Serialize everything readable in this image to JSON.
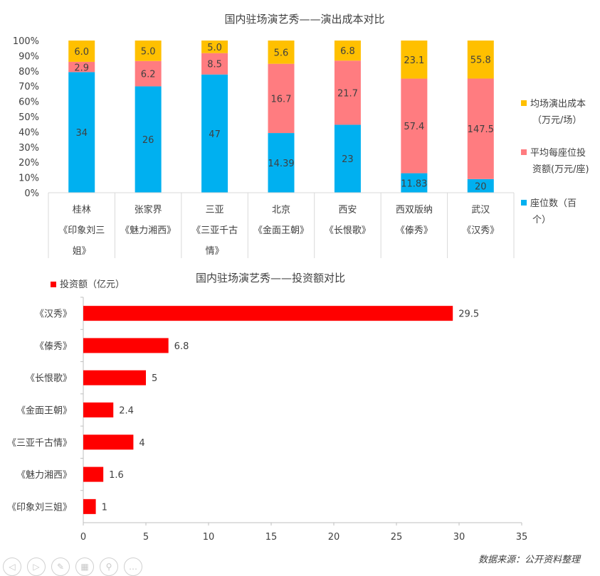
{
  "chart_data": [
    {
      "type": "bar",
      "stacked": "percent",
      "title": "国内驻场演艺秀——演出成本对比",
      "categories": [
        [
          "桂林",
          "《印象刘三",
          "姐》"
        ],
        [
          "张家界",
          "《魅力湘西》"
        ],
        [
          "三亚",
          "《三亚千古",
          "情》"
        ],
        [
          "北京",
          "《金面王朝》"
        ],
        [
          "西安",
          "《长恨歌》"
        ],
        [
          "西双版纳",
          "《傣秀》"
        ],
        [
          "武汉",
          "《汉秀》"
        ]
      ],
      "yticks": [
        "0%",
        "10%",
        "20%",
        "30%",
        "40%",
        "50%",
        "60%",
        "70%",
        "80%",
        "90%",
        "100%"
      ],
      "series": [
        {
          "name": [
            "座位数（百",
            "个）"
          ],
          "color": "#00b0f0",
          "values": [
            34,
            26,
            47,
            14.39,
            23,
            11.83,
            20
          ],
          "labels": [
            "34",
            "26",
            "47",
            "14.39",
            "23",
            "11.83",
            "20"
          ]
        },
        {
          "name": [
            "平均每座位投",
            "资额(万元/座)"
          ],
          "color": "#ff7c80",
          "values": [
            2.9,
            6.2,
            8.5,
            16.7,
            21.7,
            57.4,
            147.5
          ],
          "labels": [
            "2.9",
            "6.2",
            "8.5",
            "16.7",
            "21.7",
            "57.4",
            "147.5"
          ]
        },
        {
          "name": [
            "均场演出成本",
            "（万元/场）"
          ],
          "color": "#ffc000",
          "values": [
            6.0,
            5.0,
            5.0,
            5.6,
            6.8,
            23.1,
            55.8
          ],
          "labels": [
            "6.0",
            "5.0",
            "5.0",
            "5.6",
            "6.8",
            "23.1",
            "55.8"
          ]
        }
      ],
      "ylim": [
        0,
        100
      ],
      "grid": false,
      "legend": "right"
    },
    {
      "type": "bar",
      "orientation": "horizontal",
      "title": "国内驻场演艺秀——投资额对比",
      "categories": [
        "《汉秀》",
        "《傣秀》",
        "《长恨歌》",
        "《金面王朝》",
        "《三亚千古情》",
        "《魅力湘西》",
        "《印象刘三姐》"
      ],
      "series": [
        {
          "name": "投资额（亿元）",
          "color": "#ff0000",
          "values": [
            29.5,
            6.8,
            5,
            2.4,
            4,
            1.6,
            1
          ],
          "labels": [
            "29.5",
            "6.8",
            "5",
            "2.4",
            "4",
            "1.6",
            "1"
          ]
        }
      ],
      "xlim": [
        0,
        35
      ],
      "xticks": [
        "0",
        "5",
        "10",
        "15",
        "20",
        "25",
        "30",
        "35"
      ],
      "grid": false,
      "legend": "top-left"
    }
  ],
  "source": "数据来源：公开资料整理",
  "toolbar": [
    {
      "icon": "prev-icon",
      "glyph": "◁"
    },
    {
      "icon": "next-icon",
      "glyph": "▷"
    },
    {
      "icon": "pen-icon",
      "glyph": "✎"
    },
    {
      "icon": "slides-icon",
      "glyph": "▦"
    },
    {
      "icon": "zoom-icon",
      "glyph": "⚲"
    },
    {
      "icon": "more-icon",
      "glyph": "…"
    }
  ]
}
